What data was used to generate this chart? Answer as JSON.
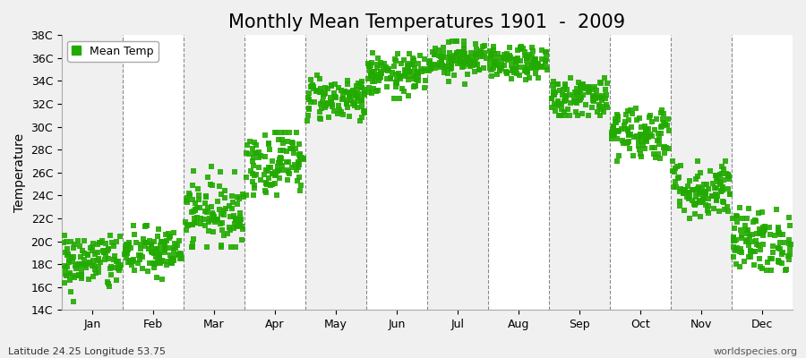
{
  "title": "Monthly Mean Temperatures 1901  -  2009",
  "ylabel": "Temperature",
  "subtitle_left": "Latitude 24.25 Longitude 53.75",
  "subtitle_right": "worldspecies.org",
  "legend_label": "Mean Temp",
  "dot_color": "#22aa00",
  "background_color": "#f0f0f0",
  "stripe_color": "#ffffff",
  "ylim": [
    14,
    38
  ],
  "yticks": [
    14,
    16,
    18,
    20,
    22,
    24,
    26,
    28,
    30,
    32,
    34,
    36,
    38
  ],
  "ytick_labels": [
    "14C",
    "16C",
    "18C",
    "20C",
    "22C",
    "24C",
    "26C",
    "28C",
    "30C",
    "32C",
    "34C",
    "36C",
    "38C"
  ],
  "months": [
    "Jan",
    "Feb",
    "Mar",
    "Apr",
    "May",
    "Jun",
    "Jul",
    "Aug",
    "Sep",
    "Oct",
    "Nov",
    "Dec"
  ],
  "monthly_mean": [
    18.2,
    19.0,
    22.5,
    27.0,
    32.5,
    34.5,
    36.0,
    35.5,
    32.5,
    29.5,
    24.5,
    20.0
  ],
  "monthly_std": [
    1.3,
    1.1,
    1.5,
    1.5,
    1.0,
    0.9,
    0.8,
    0.7,
    1.0,
    1.2,
    1.3,
    1.4
  ],
  "monthly_range_min": [
    14.5,
    16.5,
    19.5,
    24.0,
    30.5,
    32.5,
    33.5,
    33.5,
    31.0,
    27.0,
    22.0,
    17.5
  ],
  "monthly_range_max": [
    20.5,
    21.5,
    26.5,
    29.5,
    34.5,
    36.5,
    37.5,
    37.0,
    34.5,
    32.0,
    27.0,
    23.5
  ],
  "n_years": 109,
  "dot_size": 14,
  "dot_alpha": 0.9,
  "title_fontsize": 15,
  "axis_fontsize": 10,
  "tick_fontsize": 9,
  "legend_fontsize": 9
}
